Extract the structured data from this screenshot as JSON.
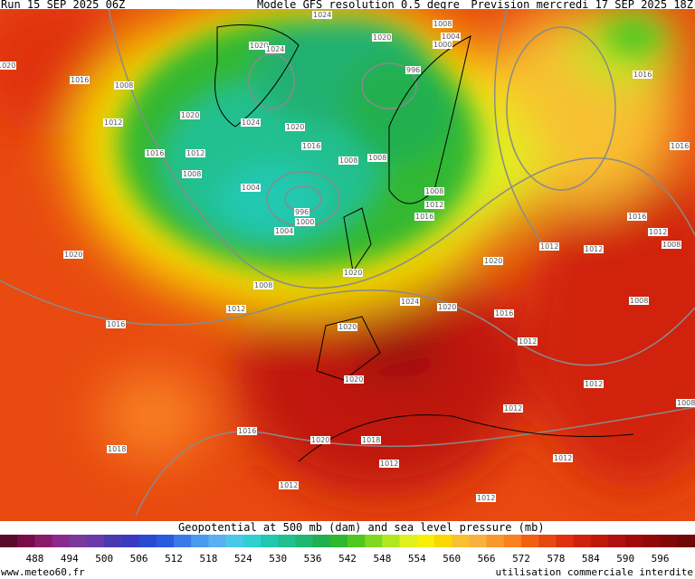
{
  "header": {
    "run": "Run 15 SEP 2025 06Z",
    "model": "Modele GFS resolution 0.5 degre",
    "forecast": "Prevision mercredi 17 SEP 2025 18Z"
  },
  "isobars": [
    1024,
    1008,
    1004,
    1000,
    1020,
    1020,
    1016,
    1008,
    1020,
    1024,
    996,
    1016,
    1020,
    1012,
    1024,
    1020,
    1016,
    1016,
    1016,
    1012,
    1008,
    1008,
    1008,
    1004,
    1008,
    1012,
    1016,
    996,
    1000,
    1004,
    1016,
    1012,
    1008,
    1012,
    1012,
    1020,
    1020,
    1020,
    1008,
    1024,
    1020,
    1012,
    1008,
    1016,
    1016,
    1020,
    1012,
    1020,
    1012,
    1008,
    1012,
    1016,
    1018,
    1020,
    1018,
    1012,
    1012,
    1012,
    1012
  ],
  "colorbar": {
    "title": "Geopotential at 500 mb (dam) and sea level pressure (mb)",
    "ticks": [
      488,
      494,
      500,
      506,
      512,
      518,
      524,
      530,
      536,
      542,
      548,
      554,
      560,
      566,
      572,
      578,
      584,
      590,
      596
    ],
    "colors": [
      "#5a0a2a",
      "#7a0a4a",
      "#8a1a6a",
      "#8a2a8a",
      "#7a3a9a",
      "#6a3aaa",
      "#4a3ab0",
      "#3a3ac0",
      "#2a4ad0",
      "#2a5ae0",
      "#3a7ae8",
      "#4a9af0",
      "#5ab0f0",
      "#4ac8e8",
      "#30d0d0",
      "#20c8b0",
      "#20c090",
      "#20b870",
      "#20b050",
      "#30b830",
      "#50c820",
      "#80d820",
      "#b0e820",
      "#e0f020",
      "#f8f000",
      "#f8d800",
      "#f8c030",
      "#f8b040",
      "#f89830",
      "#f88020",
      "#f06010",
      "#e84810",
      "#e03010",
      "#d02010",
      "#c01808",
      "#b01010",
      "#a00a0a",
      "#900808",
      "#800808",
      "#700808"
    ]
  },
  "footer": {
    "site": "www.meteo60.fr",
    "notice": "utilisation commerciale interdite"
  }
}
